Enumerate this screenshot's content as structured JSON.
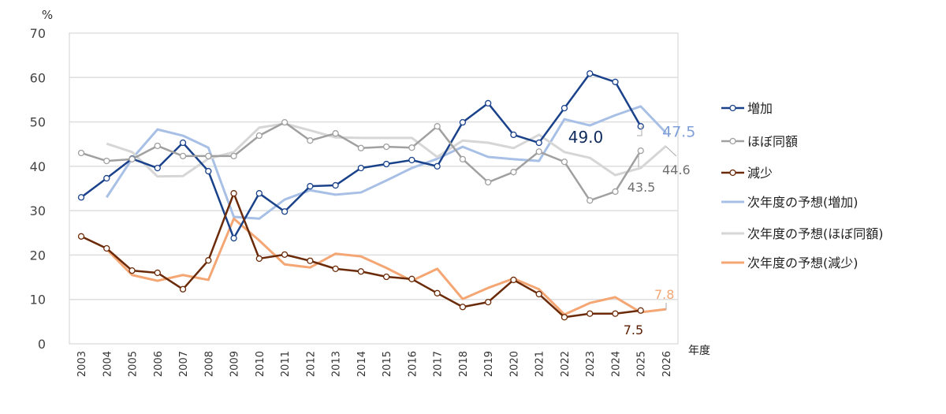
{
  "chart_data": {
    "type": "line",
    "ylabel": "%",
    "xlabel": "年度",
    "ylim": [
      0,
      70
    ],
    "yticks": [
      0,
      10,
      20,
      30,
      40,
      50,
      60,
      70
    ],
    "grid": true,
    "legend_position": "right",
    "categories": [
      "2003",
      "2004",
      "2005",
      "2006",
      "2007",
      "2008",
      "2009",
      "2010",
      "2011",
      "2012",
      "2013",
      "2014",
      "2015",
      "2016",
      "2017",
      "2018",
      "2019",
      "2020",
      "2021",
      "2022",
      "2023",
      "2024",
      "2025",
      "2026"
    ],
    "series": [
      {
        "name": "増加",
        "color": "#1a428a",
        "markers": true,
        "dash": false,
        "values": [
          33.0,
          37.3,
          41.7,
          39.6,
          45.3,
          38.9,
          23.8,
          33.9,
          29.8,
          35.5,
          35.7,
          39.6,
          40.5,
          41.4,
          40.0,
          49.9,
          54.2,
          47.1,
          45.3,
          53.1,
          60.9,
          59.0,
          49.0,
          null
        ]
      },
      {
        "name": "ほぼ同額",
        "color": "#a0a0a0",
        "markers": true,
        "values": [
          43.0,
          41.2,
          41.6,
          44.6,
          42.3,
          42.3,
          42.3,
          46.9,
          49.9,
          45.8,
          47.4,
          44.1,
          44.4,
          44.2,
          49.0,
          41.6,
          36.4,
          38.7,
          43.3,
          41.0,
          32.3,
          34.3,
          43.5,
          null
        ]
      },
      {
        "name": "減少",
        "color": "#6b2a08",
        "markers": true,
        "values": [
          24.2,
          21.5,
          16.5,
          16.0,
          12.3,
          18.8,
          33.9,
          19.2,
          20.1,
          18.7,
          16.9,
          16.3,
          15.1,
          14.6,
          11.4,
          8.3,
          9.4,
          14.4,
          11.2,
          6.0,
          6.8,
          6.8,
          7.5,
          null
        ]
      },
      {
        "name": "次年度の予想(増加)",
        "color": "#a8c0e6",
        "markers": false,
        "values": [
          null,
          33.0,
          41.7,
          48.3,
          46.9,
          44.2,
          28.6,
          28.2,
          32.5,
          34.6,
          33.6,
          34.1,
          36.8,
          39.6,
          41.7,
          44.4,
          42.1,
          41.6,
          41.2,
          50.6,
          49.2,
          51.5,
          53.5,
          47.5
        ]
      },
      {
        "name": "次年度の予想(ほぼ同額)",
        "color": "#d6d6d6",
        "markers": false,
        "values": [
          null,
          45.1,
          43.2,
          37.7,
          37.8,
          41.7,
          43.2,
          48.7,
          49.6,
          48.1,
          46.5,
          46.4,
          46.4,
          46.4,
          42.1,
          45.8,
          45.3,
          44.1,
          47.1,
          43.2,
          41.9,
          38.0,
          39.6,
          44.6
        ]
      },
      {
        "name": "次年度の予想(減少)",
        "color": "#f4a774",
        "markers": false,
        "values": [
          null,
          21.3,
          15.5,
          14.2,
          15.5,
          14.4,
          28.2,
          23.3,
          17.9,
          17.2,
          20.3,
          19.7,
          17.1,
          14.2,
          16.9,
          10.1,
          12.6,
          14.7,
          12.3,
          6.6,
          9.2,
          10.5,
          7.1,
          7.8
        ]
      }
    ],
    "annotations": [
      {
        "text": "49.0",
        "series": "増加",
        "year": "2025",
        "color": "#0f2a5c"
      },
      {
        "text": "47.5",
        "series": "次年度の予想(増加)",
        "year": "2026",
        "color": "#7f9fd8"
      },
      {
        "text": "44.6",
        "series": "次年度の予想(ほぼ同額)",
        "year": "2026",
        "color": "#707070"
      },
      {
        "text": "43.5",
        "series": "ほぼ同額",
        "year": "2025",
        "color": "#707070"
      },
      {
        "text": "7.8",
        "series": "次年度の予想(減少)",
        "year": "2026",
        "color": "#f4a774"
      },
      {
        "text": "7.5",
        "series": "減少",
        "year": "2025",
        "color": "#5a1e02"
      }
    ]
  }
}
